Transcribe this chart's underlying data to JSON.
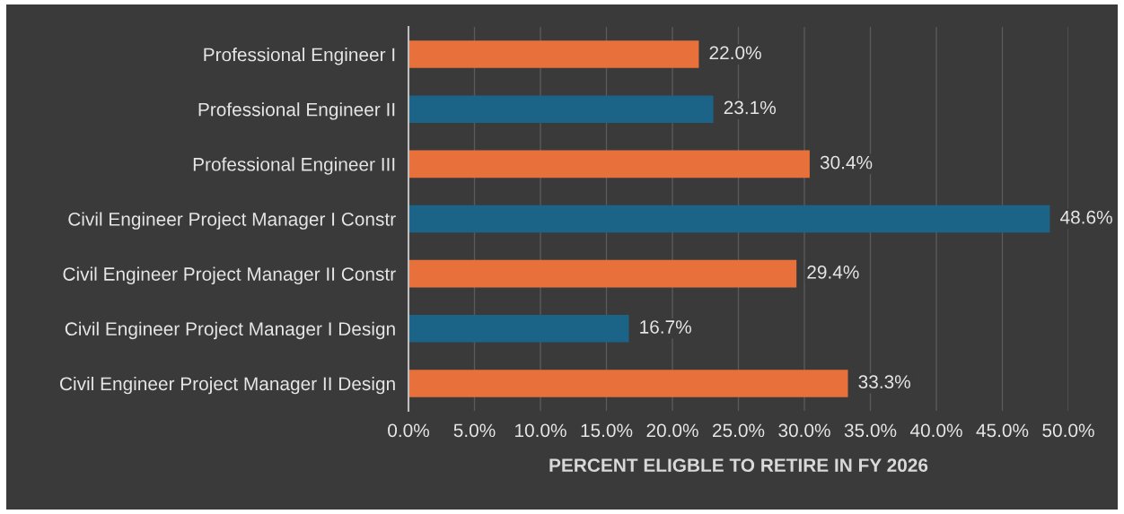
{
  "chart_data": {
    "type": "bar",
    "orientation": "horizontal",
    "xlabel": "PERCENT ELIGBLE TO RETIRE IN FY 2026",
    "categories": [
      "Professional Engineer I",
      "Professional Engineer II",
      "Professional Engineer III",
      "Civil Engineer Project Manager I Constr",
      "Civil Engineer Project Manager II Constr",
      "Civil Engineer Project Manager I Design",
      "Civil Engineer Project Manager II Design"
    ],
    "values": [
      22.0,
      23.1,
      30.4,
      48.6,
      29.4,
      16.7,
      33.3
    ],
    "colors": [
      "#e8703a",
      "#1c6388",
      "#e8703a",
      "#1c6388",
      "#e8703a",
      "#1c6388",
      "#e8703a"
    ],
    "value_labels": [
      "22.0%",
      "23.1%",
      "30.4%",
      "48.6%",
      "29.4%",
      "16.7%",
      "33.3%"
    ],
    "xlim": [
      0,
      50
    ],
    "xticks": [
      {
        "value": 0,
        "label": "0.0%"
      },
      {
        "value": 5,
        "label": "5.0%"
      },
      {
        "value": 10,
        "label": "10.0%"
      },
      {
        "value": 15,
        "label": "15.0%"
      },
      {
        "value": 20,
        "label": "20.0%"
      },
      {
        "value": 25,
        "label": "25.0%"
      },
      {
        "value": 30,
        "label": "30.0%"
      },
      {
        "value": 35,
        "label": "35.0%"
      },
      {
        "value": 40,
        "label": "40.0%"
      },
      {
        "value": 45,
        "label": "45.0%"
      },
      {
        "value": 50,
        "label": "50.0%"
      }
    ],
    "grid": "x"
  }
}
